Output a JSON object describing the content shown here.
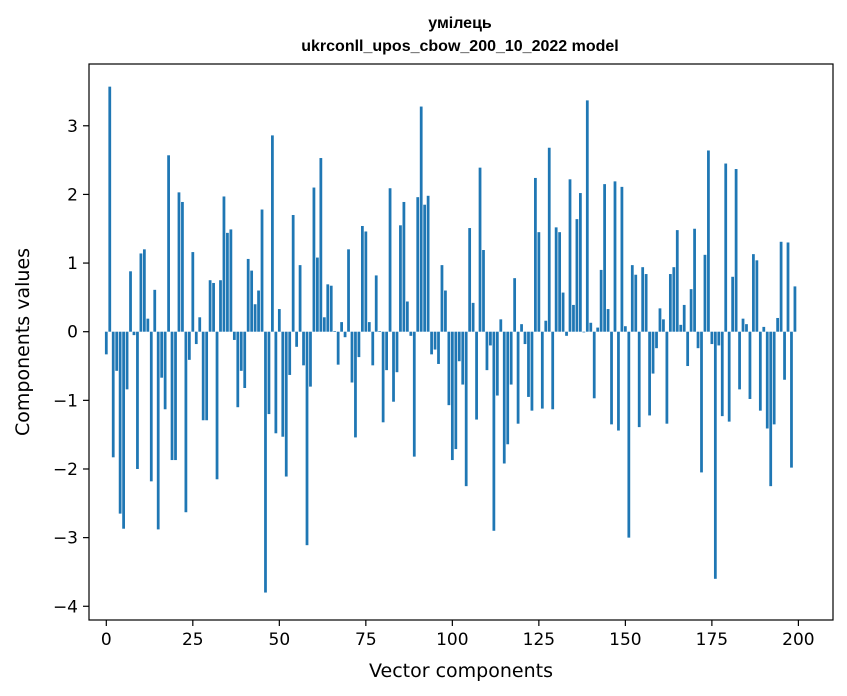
{
  "chart_data": {
    "type": "bar",
    "title": "умілець",
    "subtitle": "ukrconll_upos_cbow_200_10_2022 model",
    "xlabel": "Vector components",
    "ylabel": "Components values",
    "xlim": [
      -5,
      210
    ],
    "ylim": [
      -4.2,
      3.9
    ],
    "xticks": [
      0,
      25,
      50,
      75,
      100,
      125,
      150,
      175,
      200
    ],
    "yticks": [
      3,
      2,
      1,
      0,
      -1,
      -2,
      -3,
      -4
    ],
    "color": "#1f77b4",
    "grid": false,
    "legend": "none",
    "values": [
      -0.33,
      3.57,
      -1.83,
      -0.57,
      -2.65,
      -2.87,
      -0.84,
      0.88,
      -0.05,
      -2.0,
      1.14,
      1.2,
      0.19,
      -2.18,
      0.61,
      -2.88,
      -0.67,
      -1.13,
      2.57,
      -1.87,
      -1.87,
      2.03,
      1.89,
      -2.63,
      -0.41,
      1.16,
      -0.18,
      0.21,
      -1.29,
      -1.29,
      0.75,
      0.71,
      -2.15,
      0.75,
      1.97,
      1.44,
      1.49,
      -0.12,
      -1.1,
      -0.57,
      -0.82,
      1.06,
      0.89,
      0.4,
      0.6,
      1.78,
      -3.8,
      -1.2,
      2.86,
      -1.48,
      0.33,
      -1.53,
      -2.11,
      -0.63,
      1.7,
      -0.22,
      0.97,
      -0.49,
      -3.11,
      -0.8,
      2.1,
      1.08,
      2.53,
      0.21,
      0.69,
      0.67,
      0.01,
      -0.48,
      0.14,
      -0.08,
      1.2,
      -0.74,
      -1.54,
      -0.37,
      1.54,
      1.46,
      0.14,
      -0.49,
      0.82,
      0.01,
      -1.32,
      -0.56,
      2.09,
      -1.02,
      -0.59,
      1.55,
      1.89,
      0.44,
      -0.06,
      -1.82,
      1.96,
      3.28,
      1.85,
      1.98,
      -0.33,
      -0.26,
      -0.47,
      0.97,
      0.6,
      -1.07,
      -1.87,
      -1.71,
      -0.43,
      -0.77,
      -2.25,
      1.51,
      0.42,
      -1.28,
      2.39,
      1.19,
      -0.56,
      -0.2,
      -2.9,
      -0.93,
      0.18,
      -1.92,
      -1.64,
      -0.77,
      0.78,
      -1.34,
      0.11,
      -0.18,
      -0.95,
      -1.15,
      2.24,
      1.45,
      -1.12,
      0.16,
      2.68,
      -1.13,
      1.52,
      1.45,
      0.57,
      -0.06,
      2.22,
      0.39,
      1.64,
      2.02,
      -0.01,
      3.37,
      0.13,
      -0.97,
      0.06,
      0.9,
      2.15,
      0.33,
      -1.35,
      2.19,
      -1.44,
      2.11,
      0.08,
      -3.0,
      0.97,
      0.83,
      -1.39,
      0.94,
      0.84,
      -1.22,
      -0.61,
      -0.24,
      0.34,
      0.18,
      -1.34,
      0.84,
      0.94,
      1.48,
      0.1,
      0.39,
      -0.5,
      0.62,
      1.5,
      -0.24,
      -2.05,
      1.12,
      2.64,
      -0.18,
      -3.6,
      -0.2,
      -1.23,
      2.45,
      -1.31,
      0.8,
      2.37,
      -0.84,
      0.19,
      0.11,
      -0.98,
      1.13,
      1.04,
      -1.15,
      0.07,
      -1.41,
      -2.25,
      -1.35,
      0.2,
      1.31,
      -0.7,
      1.3,
      -1.98,
      0.66
    ]
  }
}
